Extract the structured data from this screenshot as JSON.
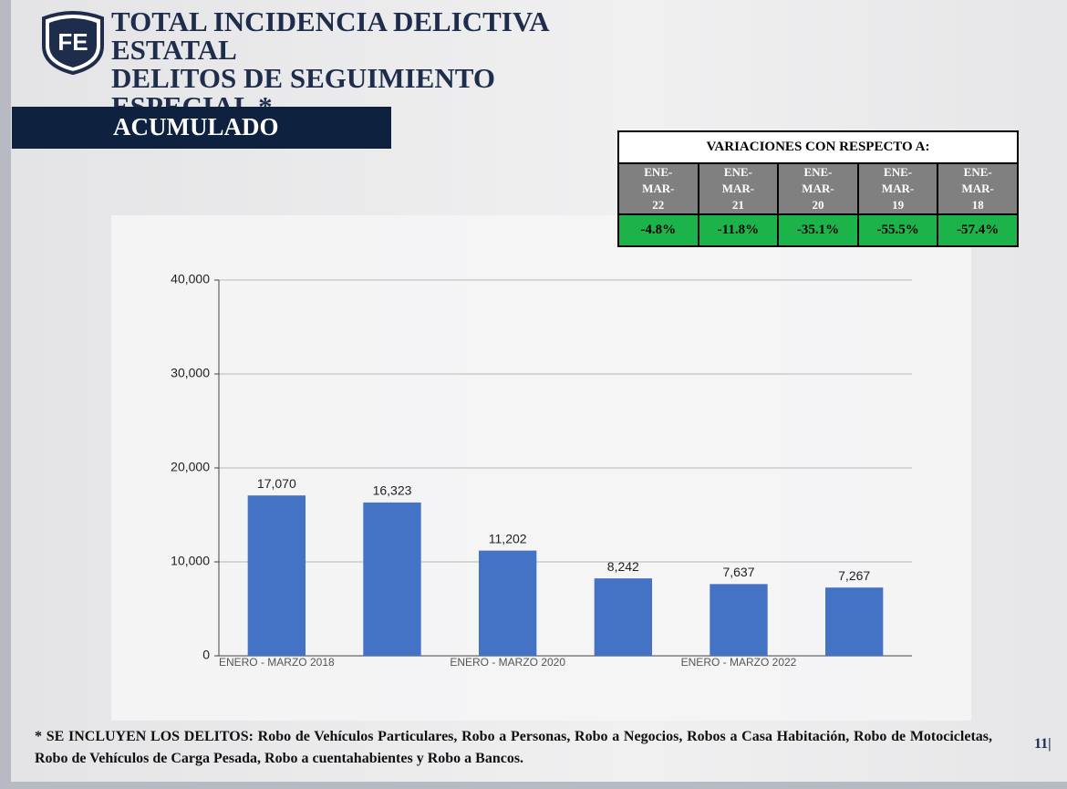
{
  "header": {
    "logo": "FE",
    "title_lines": [
      "TOTAL INCIDENCIA DELICTIVA ESTATAL",
      "DELITOS DE SEGUIMIENTO ESPECIAL *"
    ],
    "subtitle": "ACUMULADO"
  },
  "variations_table": {
    "title": "VARIACIONES CON RESPECTO A:",
    "headers": [
      "ENE-MAR-22",
      "ENE-MAR-21",
      "ENE-MAR-20",
      "ENE-MAR-19",
      "ENE-MAR-18"
    ],
    "values": [
      "-4.8%",
      "-11.8%",
      "-35.1%",
      "-55.5%",
      "-57.4%"
    ]
  },
  "chart_data": {
    "type": "bar",
    "categories": [
      "ENERO - MARZO 2018",
      null,
      "ENERO - MARZO 2020",
      null,
      "ENERO - MARZO 2022",
      null
    ],
    "values": [
      17070,
      16323,
      11202,
      8242,
      7637,
      7267
    ],
    "value_labels": [
      "17,070",
      "16,323",
      "11,202",
      "8,242",
      "7,637",
      "7,267"
    ],
    "color": "#4472c4",
    "ylim": [
      0,
      40000
    ],
    "yticks": [
      0,
      {
        "value": 10000,
        "label": "10,000"
      },
      {
        "value": 20000,
        "label": "20,000"
      },
      {
        "value": 30000,
        "label": "30,000"
      },
      {
        "value": 40000,
        "label": "40,000"
      }
    ],
    "grid": true
  },
  "footnote": "* SE INCLUYEN LOS DELITOS: Robo de Vehículos Particulares, Robo a Personas, Robo a Negocios, Robos a Casa Habitación, Robo de Motocicletas,  Robo de Vehículos de Carga Pesada, Robo a cuentahabientes y Robo a Bancos.",
  "page_number": "11|"
}
